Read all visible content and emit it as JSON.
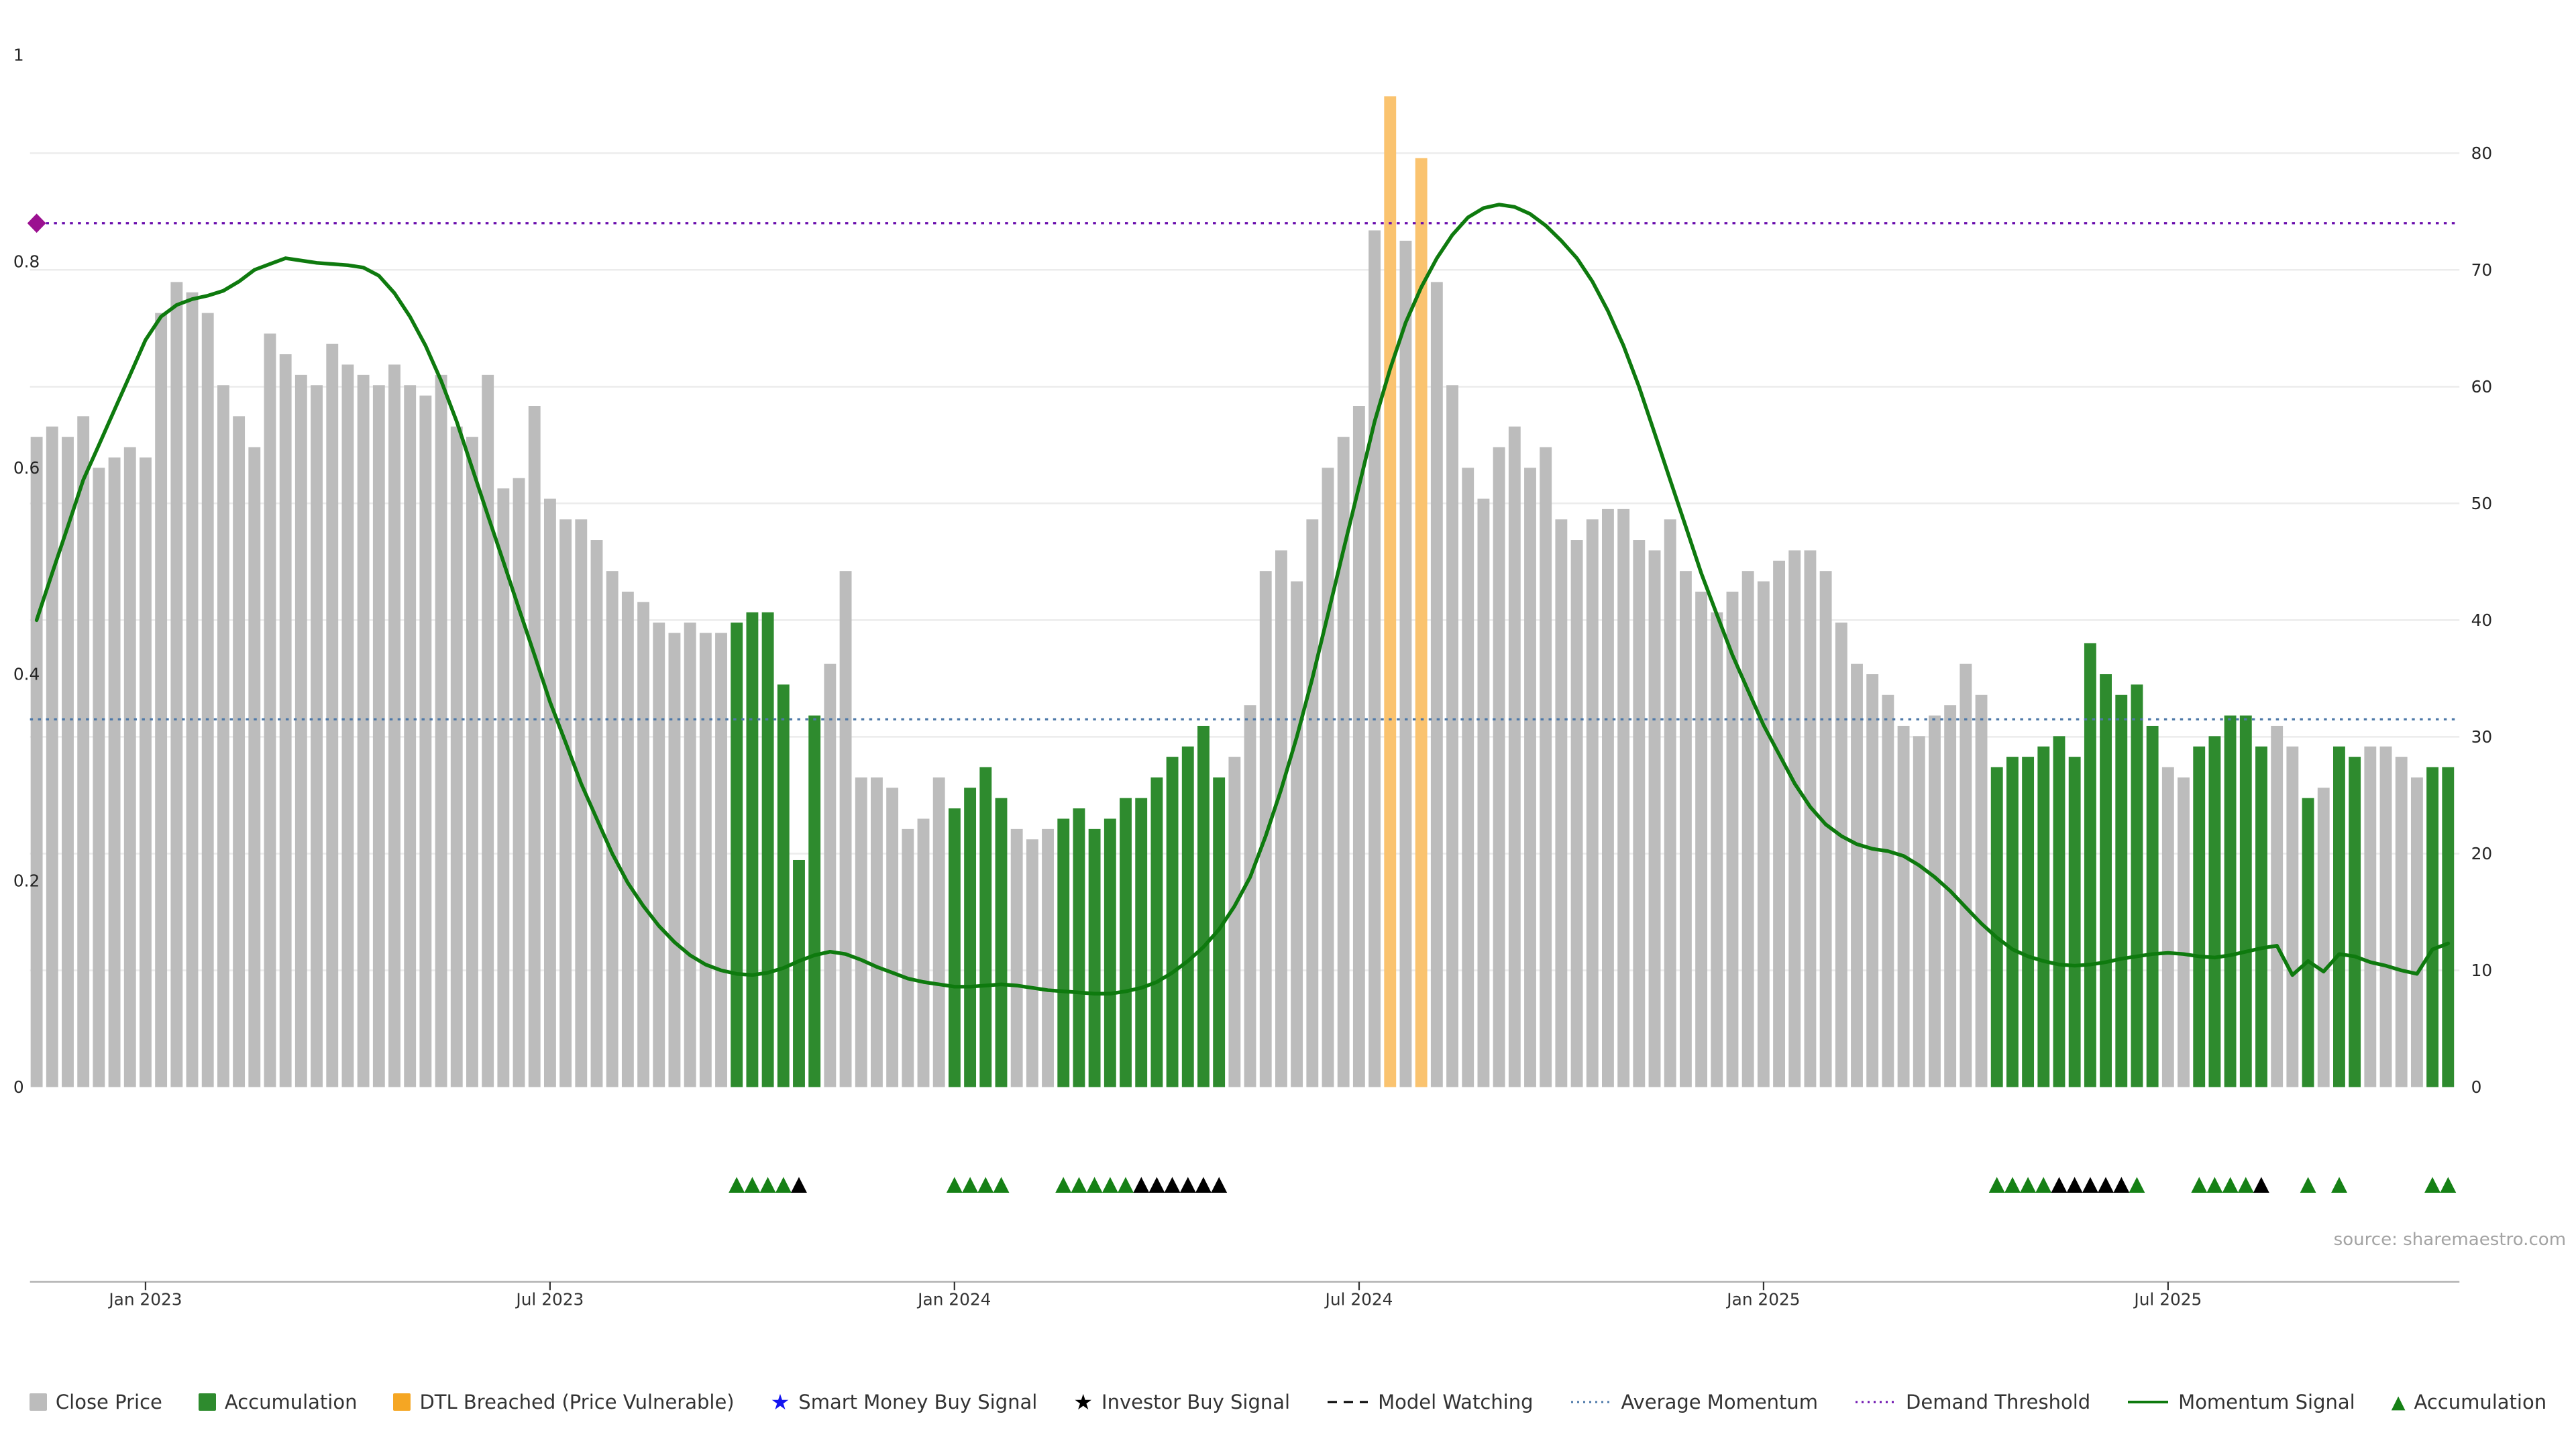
{
  "chart_data": {
    "type": "bar+line",
    "source": "source: sharemaestro.com",
    "bar_values": [
      0.63,
      0.64,
      0.63,
      0.65,
      0.6,
      0.61,
      0.62,
      0.61,
      0.75,
      0.78,
      0.77,
      0.75,
      0.68,
      0.65,
      0.62,
      0.73,
      0.71,
      0.69,
      0.68,
      0.72,
      0.7,
      0.69,
      0.68,
      0.7,
      0.68,
      0.67,
      0.69,
      0.64,
      0.63,
      0.69,
      0.58,
      0.59,
      0.66,
      0.57,
      0.55,
      0.55,
      0.53,
      0.5,
      0.48,
      0.47,
      0.45,
      0.44,
      0.45,
      0.44,
      0.44,
      0.45,
      0.46,
      0.46,
      0.39,
      0.22,
      0.36,
      0.41,
      0.5,
      0.3,
      0.3,
      0.29,
      0.25,
      0.26,
      0.3,
      0.27,
      0.29,
      0.31,
      0.28,
      0.25,
      0.24,
      0.25,
      0.26,
      0.27,
      0.25,
      0.26,
      0.28,
      0.28,
      0.3,
      0.32,
      0.33,
      0.35,
      0.3,
      0.32,
      0.37,
      0.5,
      0.52,
      0.49,
      0.55,
      0.6,
      0.63,
      0.66,
      0.83,
      0.96,
      0.82,
      0.9,
      0.78,
      0.68,
      0.6,
      0.57,
      0.62,
      0.64,
      0.6,
      0.62,
      0.55,
      0.53,
      0.55,
      0.56,
      0.56,
      0.53,
      0.52,
      0.55,
      0.5,
      0.48,
      0.46,
      0.48,
      0.5,
      0.49,
      0.51,
      0.52,
      0.52,
      0.5,
      0.45,
      0.41,
      0.4,
      0.38,
      0.35,
      0.34,
      0.36,
      0.37,
      0.41,
      0.38,
      0.31,
      0.32,
      0.32,
      0.33,
      0.34,
      0.32,
      0.43,
      0.4,
      0.38,
      0.39,
      0.35,
      0.31,
      0.3,
      0.33,
      0.34,
      0.36,
      0.36,
      0.33,
      0.35,
      0.33,
      0.28,
      0.29,
      0.33,
      0.32,
      0.33,
      0.33,
      0.32,
      0.3,
      0.31,
      0.31
    ],
    "accumulation_weeks": [
      45,
      46,
      47,
      48,
      49,
      50,
      59,
      60,
      61,
      62,
      66,
      67,
      68,
      69,
      70,
      71,
      72,
      73,
      74,
      75,
      76,
      126,
      127,
      128,
      129,
      130,
      131,
      132,
      133,
      134,
      135,
      136,
      139,
      140,
      141,
      142,
      143,
      146,
      148,
      149,
      154,
      155
    ],
    "dtl_breached_weeks": [
      87,
      89
    ],
    "momentum": [
      40,
      44,
      48,
      52,
      55,
      58,
      61,
      64,
      66,
      67,
      67.5,
      67.8,
      68.2,
      69,
      70,
      70.5,
      71,
      70.8,
      70.6,
      70.5,
      70.4,
      70.2,
      69.5,
      68,
      66,
      63.5,
      60.5,
      57,
      53,
      49,
      45,
      41,
      37,
      33,
      29.5,
      26,
      23,
      20,
      17.5,
      15.5,
      13.8,
      12.4,
      11.3,
      10.5,
      10,
      9.7,
      9.6,
      9.8,
      10.2,
      10.8,
      11.3,
      11.6,
      11.4,
      10.9,
      10.3,
      9.8,
      9.3,
      9,
      8.8,
      8.6,
      8.6,
      8.7,
      8.8,
      8.7,
      8.5,
      8.3,
      8.2,
      8.1,
      8,
      8,
      8.2,
      8.5,
      9,
      9.8,
      10.8,
      12,
      13.5,
      15.5,
      18,
      21.5,
      25.5,
      30,
      35,
      40.5,
      46,
      51.5,
      57,
      61.5,
      65.5,
      68.5,
      71,
      73,
      74.5,
      75.3,
      75.6,
      75.4,
      74.8,
      73.8,
      72.5,
      71,
      69,
      66.5,
      63.5,
      60,
      56,
      52,
      48,
      44,
      40.5,
      37,
      34,
      31,
      28.5,
      26,
      24,
      22.5,
      21.5,
      20.8,
      20.4,
      20.2,
      19.8,
      19,
      18,
      16.8,
      15.4,
      14,
      12.8,
      11.8,
      11.2,
      10.8,
      10.5,
      10.4,
      10.5,
      10.7,
      11,
      11.2,
      11.4,
      11.5,
      11.4,
      11.2,
      11.1,
      11.3,
      11.6,
      11.9,
      12.1,
      9.6,
      10.8,
      9.9,
      11.4,
      11.2,
      10.7,
      10.4,
      10,
      9.7,
      11.8,
      12.3
    ],
    "average_momentum": 31.5,
    "demand_threshold": 74,
    "markers": {
      "accumulation_weeks": [
        45,
        46,
        47,
        48,
        59,
        60,
        61,
        62,
        66,
        67,
        68,
        69,
        70,
        126,
        127,
        128,
        129,
        135,
        139,
        140,
        141,
        142,
        146,
        148,
        154,
        155
      ],
      "investor_weeks": [
        49,
        71,
        72,
        73,
        74,
        75,
        76,
        130,
        131,
        132,
        133,
        134,
        143
      ]
    },
    "axes": {
      "left_ticks": [
        {
          "v": 0,
          "label": "0"
        },
        {
          "v": 0.2,
          "label": "0.2"
        },
        {
          "v": 0.4,
          "label": "0.4"
        },
        {
          "v": 0.6,
          "label": "0.6"
        },
        {
          "v": 0.8,
          "label": "0.8"
        },
        {
          "v": 1,
          "label": "1"
        }
      ],
      "right_ticks": [
        {
          "v": 0,
          "label": "0"
        },
        {
          "v": 10,
          "label": "10"
        },
        {
          "v": 20,
          "label": "20"
        },
        {
          "v": 30,
          "label": "30"
        },
        {
          "v": 40,
          "label": "40"
        },
        {
          "v": 50,
          "label": "50"
        },
        {
          "v": 60,
          "label": "60"
        },
        {
          "v": 70,
          "label": "70"
        },
        {
          "v": 80,
          "label": "80"
        }
      ],
      "x_ticks": [
        {
          "week": 7,
          "label": "Jan 2023"
        },
        {
          "week": 33,
          "label": "Jul 2023"
        },
        {
          "week": 59,
          "label": "Jan 2024"
        },
        {
          "week": 85,
          "label": "Jul 2024"
        },
        {
          "week": 111,
          "label": "Jan 2025"
        },
        {
          "week": 137,
          "label": "Jul 2025"
        }
      ],
      "left_range": [
        0,
        1.02
      ],
      "right_range": [
        0,
        90
      ],
      "grid": "horizontal"
    },
    "colors": {
      "close_bar": "#bcbcbc",
      "accumulation_bar": "#2e8b2e",
      "dtl_bar": "#fac36f",
      "momentum": "#0e7a0e",
      "average_momentum": "#4c78a8",
      "demand_threshold": "#6a0dad",
      "diamond": "#9b1090",
      "accumulation_marker": "#158015",
      "investor_marker": "#000000",
      "grid": "#ececec",
      "axis_text": "#262626",
      "source_text": "#a3a3a3"
    }
  },
  "legend": {
    "items": [
      {
        "icon": "square",
        "icon_name": "close-price-swatch",
        "color": "#bcbcbc",
        "label": "Close Price"
      },
      {
        "icon": "square",
        "icon_name": "accumulation-swatch",
        "color": "#2e8b2e",
        "label": "Accumulation"
      },
      {
        "icon": "square",
        "icon_name": "dtl-breached-swatch",
        "color": "#f5a623",
        "label": "DTL Breached (Price Vulnerable)"
      },
      {
        "icon": "star",
        "icon_name": "smart-money-star-icon",
        "color": "#1414f0",
        "label": "Smart Money Buy Signal"
      },
      {
        "icon": "star",
        "icon_name": "investor-star-icon",
        "color": "#000000",
        "label": "Investor Buy Signal"
      },
      {
        "icon": "dashes",
        "icon_name": "model-watching-dash-icon",
        "color": "#000000",
        "label": "Model Watching"
      },
      {
        "icon": "dotted",
        "icon_name": "average-momentum-line-icon",
        "color": "#4c78a8",
        "label": "Average Momentum"
      },
      {
        "icon": "dotted",
        "icon_name": "demand-threshold-line-icon",
        "color": "#6a0dad",
        "label": "Demand Threshold"
      },
      {
        "icon": "line",
        "icon_name": "momentum-signal-line-icon",
        "color": "#0e7a0e",
        "label": "Momentum Signal"
      },
      {
        "icon": "triangle",
        "icon_name": "accumulation-triangle-icon",
        "color": "#158015",
        "label": "Accumulation"
      }
    ]
  }
}
